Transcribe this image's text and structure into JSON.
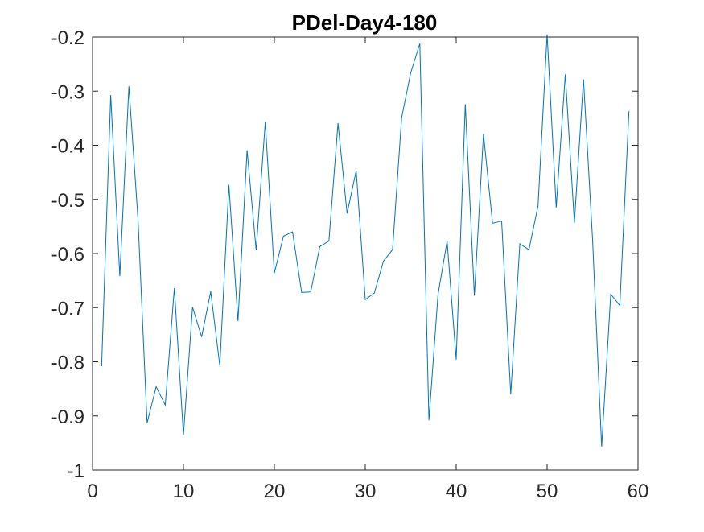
{
  "chart_data": {
    "type": "line",
    "title": "PDel-Day4-180",
    "xlabel": "",
    "ylabel": "",
    "xlim": [
      0,
      60
    ],
    "ylim": [
      -1,
      -0.2
    ],
    "xticks": [
      0,
      10,
      20,
      30,
      40,
      50,
      60
    ],
    "yticks": [
      -1,
      -0.9,
      -0.8,
      -0.7,
      -0.6,
      -0.5,
      -0.4,
      -0.3,
      -0.2
    ],
    "xtick_labels": [
      "0",
      "10",
      "20",
      "30",
      "40",
      "50",
      "60"
    ],
    "ytick_labels": [
      "-1",
      "-0.9",
      "-0.8",
      "-0.7",
      "-0.6",
      "-0.5",
      "-0.4",
      "-0.3",
      "-0.2"
    ],
    "grid": false,
    "line_color": "#0072BD",
    "series": [
      {
        "x": [
          1,
          2,
          3,
          4,
          5,
          6,
          7,
          8,
          9,
          10,
          11,
          12,
          13,
          14,
          15,
          16,
          17,
          18,
          19,
          20,
          21,
          22,
          23,
          24,
          25,
          26,
          27,
          28,
          29,
          30,
          31,
          32,
          33,
          34,
          35,
          36,
          37,
          38,
          39,
          40,
          41,
          42,
          43,
          44,
          45,
          46,
          47,
          48,
          49,
          50,
          51,
          52,
          53,
          54,
          55,
          56,
          57,
          58,
          59
        ],
        "values": [
          -0.808,
          -0.307,
          -0.642,
          -0.291,
          -0.536,
          -0.913,
          -0.846,
          -0.88,
          -0.664,
          -0.935,
          -0.699,
          -0.754,
          -0.67,
          -0.807,
          -0.473,
          -0.725,
          -0.409,
          -0.594,
          -0.357,
          -0.636,
          -0.568,
          -0.56,
          -0.672,
          -0.671,
          -0.587,
          -0.577,
          -0.359,
          -0.526,
          -0.447,
          -0.685,
          -0.673,
          -0.614,
          -0.593,
          -0.349,
          -0.266,
          -0.212,
          -0.908,
          -0.676,
          -0.577,
          -0.796,
          -0.324,
          -0.678,
          -0.379,
          -0.544,
          -0.54,
          -0.86,
          -0.582,
          -0.593,
          -0.512,
          -0.195,
          -0.515,
          -0.269,
          -0.543,
          -0.278,
          -0.574,
          -0.957,
          -0.675,
          -0.696,
          -0.337
        ]
      }
    ]
  }
}
